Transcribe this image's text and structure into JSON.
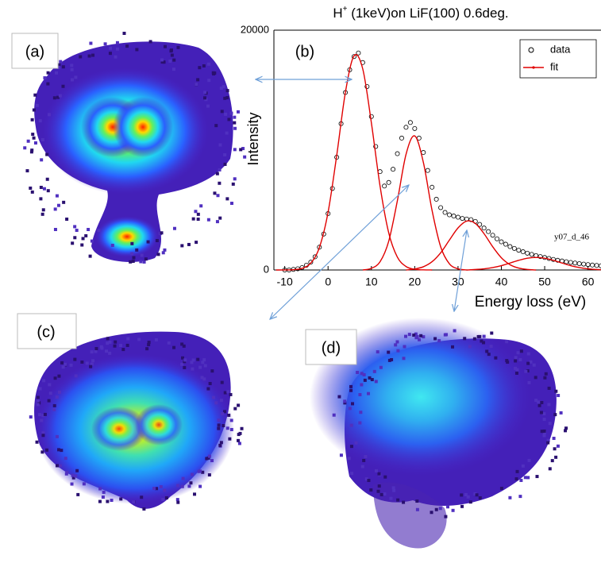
{
  "panel_labels": [
    "(a)",
    "(c)",
    "(d)"
  ],
  "chart_data": {
    "type": "line",
    "panel_label": "(b)",
    "title_parts": [
      "H",
      "+",
      " (1keV)on LiF(100) 0.6deg."
    ],
    "x_label": "Energy loss (eV)",
    "y_label": "Intensity",
    "annotation": "y07_d_46",
    "xlim": [
      -12.5,
      63
    ],
    "ylim": [
      0,
      20000
    ],
    "xticks": [
      -10,
      0,
      10,
      20,
      30,
      40,
      50,
      60
    ],
    "yticks": [
      0,
      20000
    ],
    "legend": "top-right",
    "series": [
      {
        "name": "data",
        "color": "#000000",
        "marker": "circle",
        "x": [
          -10,
          -9,
          -8,
          -7,
          -6,
          -5,
          -4,
          -3,
          -2,
          -1,
          0,
          1,
          2,
          3,
          4,
          5,
          6,
          7,
          8,
          9,
          10,
          11,
          12,
          13,
          14,
          15,
          16,
          17,
          18,
          19,
          20,
          21,
          22,
          23,
          24,
          25,
          26,
          27,
          28,
          29,
          30,
          31,
          32,
          33,
          34,
          35,
          36,
          37,
          38,
          39,
          40,
          41,
          42,
          43,
          44,
          45,
          46,
          47,
          48,
          49,
          50,
          51,
          52,
          53,
          54,
          55,
          56,
          57,
          58,
          59,
          60,
          61,
          62,
          63
        ],
        "values": [
          0,
          0,
          50,
          100,
          200,
          400,
          650,
          1100,
          1900,
          3000,
          4700,
          6800,
          9400,
          12200,
          14800,
          16700,
          17800,
          18100,
          17300,
          15300,
          12800,
          10300,
          8200,
          7000,
          7300,
          8400,
          9700,
          11000,
          11900,
          12300,
          11800,
          11000,
          9800,
          8300,
          6900,
          5900,
          5200,
          4800,
          4600,
          4500,
          4400,
          4300,
          4250,
          4200,
          4050,
          3800,
          3500,
          3200,
          2900,
          2600,
          2350,
          2150,
          1950,
          1800,
          1650,
          1520,
          1400,
          1300,
          1200,
          1120,
          1040,
          960,
          880,
          810,
          750,
          690,
          630,
          580,
          530,
          490,
          450,
          410,
          380,
          350
        ]
      },
      {
        "name": "fit",
        "color": "#e00000",
        "components": [
          {
            "x": [
              -12,
              -10,
              -8,
              -6,
              -4,
              -2,
              0,
              2,
              4,
              6,
              8,
              10,
              12,
              14,
              16,
              18,
              20,
              22,
              24
            ],
            "values": [
              0,
              4,
              25,
              136,
              572,
              1880,
              4810,
              9560,
              14810,
              17860,
              16780,
              12270,
              7000,
              3100,
              1070,
              290,
              60,
              10,
              0
            ]
          },
          {
            "x": [
              8,
              10,
              12,
              14,
              16,
              18,
              20,
              22,
              24,
              26,
              28,
              30,
              32
            ],
            "values": [
              0,
              140,
              690,
              2400,
              5780,
              9650,
              11180,
              8970,
              4980,
              1930,
              520,
              95,
              0
            ]
          },
          {
            "x": [
              18,
              20,
              22,
              24,
              26,
              28,
              30,
              32,
              34,
              36,
              38,
              40,
              42,
              44,
              46,
              48
            ],
            "values": [
              0,
              86,
              270,
              690,
              1440,
              2490,
              3510,
              4080,
              3880,
              3030,
              1940,
              1020,
              440,
              160,
              45,
              0
            ]
          },
          {
            "x": [
              32,
              34,
              36,
              38,
              40,
              42,
              44,
              46,
              48,
              50,
              52,
              54,
              56,
              58,
              60,
              62,
              63
            ],
            "values": [
              0,
              41,
              97,
              200,
              360,
              580,
              806,
              983,
              1050,
              983,
              806,
              580,
              360,
              200,
              97,
              41,
              28
            ]
          }
        ]
      }
    ]
  }
}
